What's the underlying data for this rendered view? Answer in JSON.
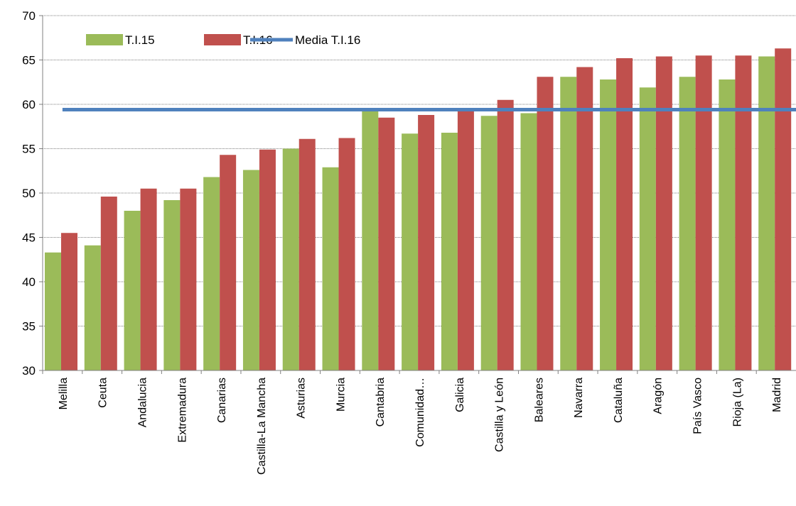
{
  "chart_data": {
    "type": "bar",
    "categories": [
      "Melilla",
      "Ceuta",
      "Andalucia",
      "Extremadura",
      "Canarias",
      "Castilla-La Mancha",
      "Asturias",
      "Murcia",
      "Cantabria",
      "Comunidad…",
      "Galicia",
      "Castilla y León",
      "Baleares",
      "Navarra",
      "Cataluña",
      "Aragón",
      "País Vasco",
      "Rioja (La)",
      "Madrid"
    ],
    "series": [
      {
        "name": "T.I.15",
        "type": "bar",
        "color": "#9BBB59",
        "values": [
          43.3,
          44.1,
          48.0,
          49.2,
          51.8,
          52.6,
          55.0,
          52.9,
          59.4,
          56.7,
          56.8,
          58.7,
          59.0,
          63.1,
          62.8,
          61.9,
          63.1,
          62.8,
          65.4
        ]
      },
      {
        "name": "T.I.16",
        "type": "bar",
        "color": "#C0504D",
        "values": [
          45.5,
          49.6,
          50.5,
          50.5,
          54.3,
          54.9,
          56.1,
          56.2,
          58.5,
          58.8,
          59.2,
          60.5,
          63.1,
          64.2,
          65.2,
          65.4,
          65.5,
          65.5,
          66.3
        ]
      },
      {
        "name": "Media T.I.16",
        "type": "line",
        "color": "#4F81BD",
        "values": [
          59.4,
          59.4,
          59.4,
          59.4,
          59.4,
          59.4,
          59.4,
          59.4,
          59.4,
          59.4,
          59.4,
          59.4,
          59.4,
          59.4,
          59.4,
          59.4,
          59.4,
          59.4,
          59.4
        ]
      }
    ],
    "ylim": [
      30,
      70
    ],
    "yticks": [
      "30",
      "35",
      "40",
      "45",
      "50",
      "55",
      "60",
      "65",
      "70"
    ],
    "legend_position": "top-left",
    "grid": "horizontal dotted"
  }
}
